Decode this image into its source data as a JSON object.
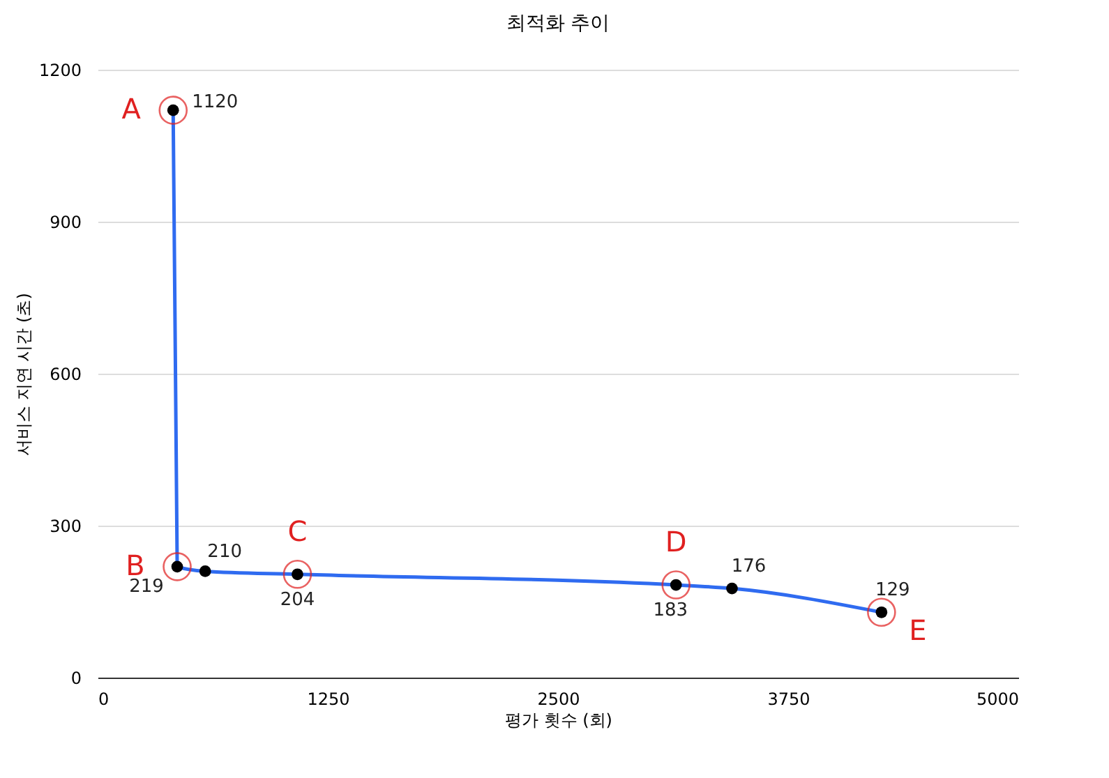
{
  "chart_data": {
    "type": "line",
    "title": "최적화 추이",
    "xlabel": "평가 횟수 (회)",
    "ylabel": "서비스 지연 시간 (초)",
    "x": [
      410,
      432,
      584,
      1085,
      3141,
      3445,
      4257
    ],
    "series": [
      {
        "color": "#2f6bf0",
        "values": [
          1120,
          219,
          210,
          204,
          183,
          176,
          129
        ]
      }
    ],
    "xlim": [
      0,
      5000
    ],
    "xticks": [
      0,
      1250,
      2500,
      3750,
      5000
    ],
    "ylim": [
      0,
      1200
    ],
    "yticks": [
      0,
      300,
      600,
      900,
      1200
    ],
    "grid": "y",
    "marker": "circle",
    "line_style": "solid",
    "data_labels": true,
    "annotations": [
      {
        "text": "A",
        "x": 410,
        "y": 1120
      },
      {
        "text": "B",
        "x": 432,
        "y": 219
      },
      {
        "text": "C",
        "x": 1085,
        "y": 204
      },
      {
        "text": "D",
        "x": 3141,
        "y": 183
      },
      {
        "text": "E",
        "x": 4257,
        "y": 129
      }
    ]
  }
}
